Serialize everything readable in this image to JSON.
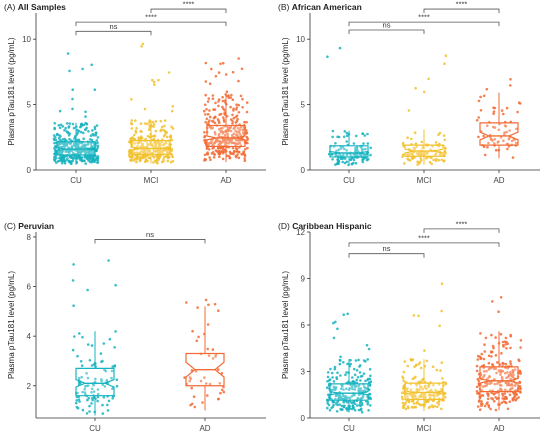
{
  "colors": {
    "CU": "#17b3c0",
    "MCI": "#f2c12e",
    "AD": "#f26b35"
  },
  "chart_data": [
    {
      "type": "box",
      "tag": "(A)",
      "title": "All Samples",
      "ylabel": "Plasma pTau181 level (pg/mL)",
      "categories": [
        "CU",
        "MCI",
        "AD"
      ],
      "ylim": [
        0,
        12
      ],
      "yticks": [
        0,
        5,
        10
      ],
      "ytick_labels": [
        "0",
        "5",
        "10"
      ],
      "boxes": [
        {
          "category": "CU",
          "q1": 1.15,
          "median": 1.6,
          "q3": 2.15,
          "notch_low": 1.5,
          "notch_high": 1.7,
          "whisker_low": 0.4,
          "whisker_high": 3.6,
          "n": 420,
          "max": 9.0
        },
        {
          "category": "MCI",
          "q1": 1.2,
          "median": 1.65,
          "q3": 2.25,
          "notch_low": 1.55,
          "notch_high": 1.75,
          "whisker_low": 0.5,
          "whisker_high": 3.8,
          "n": 320,
          "max": 9.8
        },
        {
          "category": "AD",
          "q1": 1.8,
          "median": 2.45,
          "q3": 3.4,
          "notch_low": 2.3,
          "notch_high": 2.6,
          "whisker_low": 0.6,
          "whisker_high": 5.8,
          "n": 340,
          "max": 8.8
        }
      ],
      "comparisons": [
        {
          "from": "CU",
          "to": "MCI",
          "label": "ns",
          "y": 10.6
        },
        {
          "from": "CU",
          "to": "AD",
          "label": "****",
          "y": 11.3
        },
        {
          "from": "MCI",
          "to": "AD",
          "label": "****",
          "y": 12.3
        }
      ]
    },
    {
      "type": "box",
      "tag": "(B)",
      "title": "African American",
      "ylabel": "Plasma pTau181 level (pg/mL)",
      "categories": [
        "CU",
        "MCI",
        "AD"
      ],
      "ylim": [
        0,
        12
      ],
      "yticks": [
        0,
        5,
        10
      ],
      "ytick_labels": [
        "0",
        "5",
        "10"
      ],
      "boxes": [
        {
          "category": "CU",
          "q1": 1.0,
          "median": 1.3,
          "q3": 1.85,
          "notch_low": 1.18,
          "notch_high": 1.42,
          "whisker_low": 0.35,
          "whisker_high": 3.0,
          "n": 130,
          "max": 10.2
        },
        {
          "category": "MCI",
          "q1": 1.05,
          "median": 1.45,
          "q3": 1.9,
          "notch_low": 1.3,
          "notch_high": 1.6,
          "whisker_low": 0.4,
          "whisker_high": 3.1,
          "n": 110,
          "max": 9.6
        },
        {
          "category": "AD",
          "q1": 1.9,
          "median": 2.6,
          "q3": 3.6,
          "notch_low": 2.3,
          "notch_high": 2.9,
          "whisker_low": 0.9,
          "whisker_high": 5.9,
          "n": 70,
          "max": 7.0
        }
      ],
      "comparisons": [
        {
          "from": "CU",
          "to": "MCI",
          "label": "ns",
          "y": 10.7
        },
        {
          "from": "CU",
          "to": "AD",
          "label": "****",
          "y": 11.3
        },
        {
          "from": "MCI",
          "to": "AD",
          "label": "****",
          "y": 12.3
        }
      ]
    },
    {
      "type": "box",
      "tag": "(C)",
      "title": "Peruvian",
      "ylabel": "Plasma pTau181 level (pg/mL)",
      "categories": [
        "CU",
        "AD"
      ],
      "ylim": [
        0.7,
        8.2
      ],
      "yticks": [
        2,
        4,
        6,
        8
      ],
      "ytick_labels": [
        "2",
        "4",
        "6",
        "8"
      ],
      "boxes": [
        {
          "category": "CU",
          "q1": 1.6,
          "median": 2.1,
          "q3": 2.7,
          "notch_low": 1.95,
          "notch_high": 2.25,
          "whisker_low": 0.8,
          "whisker_high": 4.2,
          "n": 110,
          "max": 7.5
        },
        {
          "category": "AD",
          "q1": 2.0,
          "median": 2.65,
          "q3": 3.3,
          "notch_low": 2.35,
          "notch_high": 2.95,
          "whisker_low": 1.0,
          "whisker_high": 5.2,
          "n": 45,
          "max": 5.5
        }
      ],
      "comparisons": [
        {
          "from": "CU",
          "to": "AD",
          "label": "ns",
          "y": 7.9
        }
      ]
    },
    {
      "type": "box",
      "tag": "(D)",
      "title": "Caribbean Hispanic",
      "ylabel": "Plasma pTau181 level (pg/mL)",
      "categories": [
        "CU",
        "MCI",
        "AD"
      ],
      "ylim": [
        0,
        12
      ],
      "yticks": [
        0,
        3,
        6,
        9,
        12
      ],
      "ytick_labels": [
        "0",
        "3",
        "6",
        "9",
        "12"
      ],
      "boxes": [
        {
          "category": "CU",
          "q1": 1.15,
          "median": 1.6,
          "q3": 2.2,
          "notch_low": 1.5,
          "notch_high": 1.7,
          "whisker_low": 0.35,
          "whisker_high": 3.8,
          "n": 260,
          "max": 7.0
        },
        {
          "category": "MCI",
          "q1": 1.2,
          "median": 1.65,
          "q3": 2.25,
          "notch_low": 1.55,
          "notch_high": 1.75,
          "whisker_low": 0.45,
          "whisker_high": 3.8,
          "n": 200,
          "max": 8.8
        },
        {
          "category": "AD",
          "q1": 1.7,
          "median": 2.4,
          "q3": 3.3,
          "notch_low": 2.25,
          "notch_high": 2.55,
          "whisker_low": 0.5,
          "whisker_high": 5.6,
          "n": 260,
          "max": 8.6
        }
      ],
      "comparisons": [
        {
          "from": "CU",
          "to": "MCI",
          "label": "ns",
          "y": 10.6
        },
        {
          "from": "CU",
          "to": "AD",
          "label": "****",
          "y": 11.3
        },
        {
          "from": "MCI",
          "to": "AD",
          "label": "****",
          "y": 12.2
        }
      ]
    }
  ]
}
